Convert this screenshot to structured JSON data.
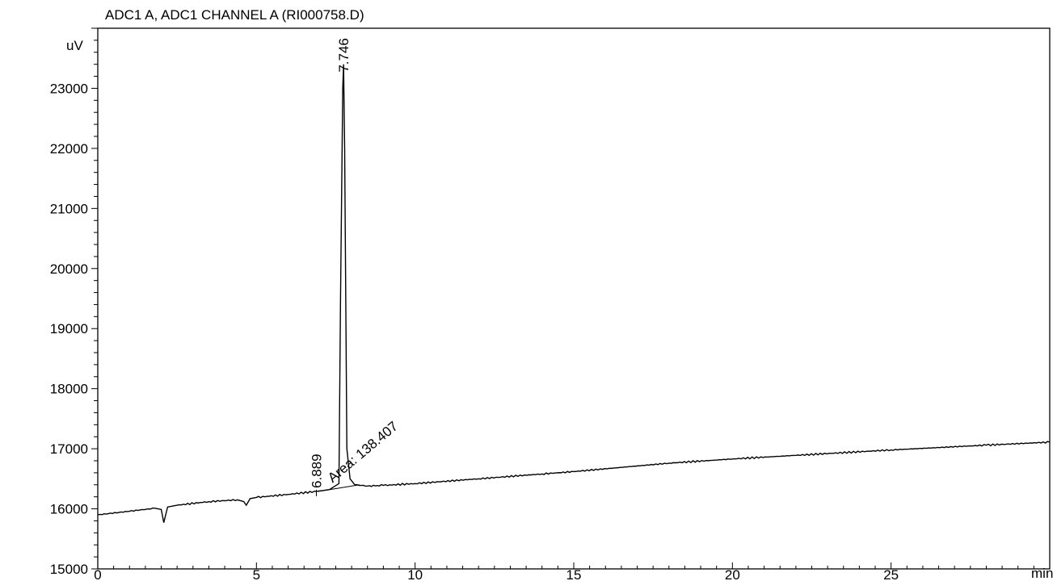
{
  "chart_data": {
    "type": "line",
    "title": "ADC1 A, ADC1 CHANNEL A (RI000758.D)",
    "xlabel": "min",
    "ylabel": "uV",
    "xlim": [
      0,
      30
    ],
    "ylim": [
      15000,
      24000
    ],
    "x_ticks": [
      0,
      5,
      10,
      15,
      20,
      25
    ],
    "y_ticks": [
      15000,
      16000,
      17000,
      18000,
      19000,
      20000,
      21000,
      22000,
      23000
    ],
    "grid": false,
    "series": [
      {
        "x": [
          0,
          1,
          1.8,
          2.0,
          2.08,
          2.2,
          2.5,
          3.5,
          4.4,
          4.6,
          4.68,
          4.8,
          5,
          6,
          6.889,
          7.3,
          7.6,
          7.65,
          7.72,
          7.746,
          7.78,
          7.85,
          7.95,
          8.1,
          8.5,
          9,
          10,
          12,
          14,
          15,
          18,
          20,
          22,
          25,
          28,
          30
        ],
        "y": [
          15900,
          15960,
          16010,
          15990,
          15770,
          16030,
          16060,
          16120,
          16150,
          16120,
          16060,
          16170,
          16190,
          16240,
          16290,
          16320,
          16420,
          19500,
          23000,
          23400,
          22000,
          17000,
          16500,
          16400,
          16380,
          16390,
          16420,
          16500,
          16580,
          16620,
          16760,
          16830,
          16890,
          16980,
          17060,
          17110
        ]
      }
    ],
    "annotations": [
      {
        "label": "7.746",
        "x": 7.746,
        "y": 23400
      },
      {
        "label": "6.889",
        "x": 6.889,
        "y": 16290
      },
      {
        "label": "Area: 138.407",
        "x": 7.3,
        "y": 16320
      }
    ]
  }
}
